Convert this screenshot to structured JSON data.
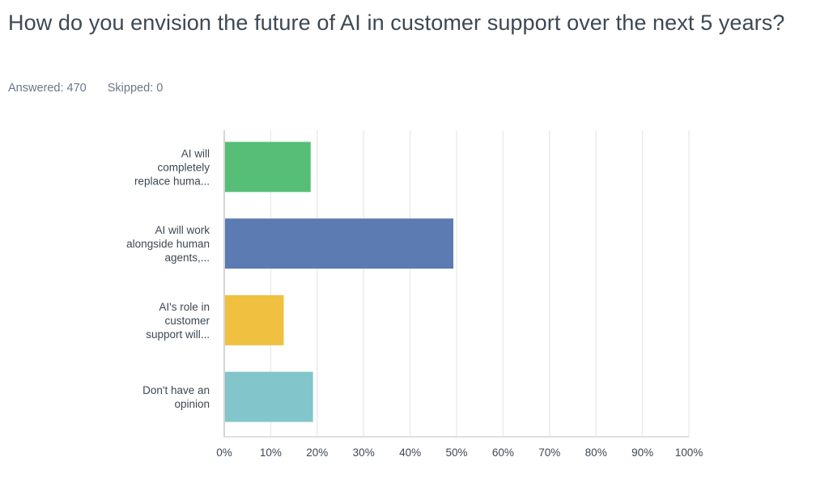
{
  "question": {
    "title": "How do you envision the future of AI in customer support over the next 5 years?",
    "answered_label": "Answered: 470",
    "skipped_label": "Skipped: 0"
  },
  "chart_data": {
    "type": "bar",
    "orientation": "horizontal",
    "title": "How do you envision the future of AI in customer support over the next 5 years?",
    "xlabel": "",
    "ylabel": "",
    "categories": [
      [
        "AI will",
        "completely",
        "replace huma..."
      ],
      [
        "AI will work",
        "alongside human",
        "agents,..."
      ],
      [
        "AI's role in",
        "customer",
        "support will..."
      ],
      [
        "Don't have an",
        "opinion"
      ]
    ],
    "category_names": [
      "AI will completely replace huma...",
      "AI will work alongside human agents,...",
      "AI's role in customer support will...",
      "Don't have an opinion"
    ],
    "values": [
      18.6,
      49.3,
      12.8,
      19.1
    ],
    "unit": "%",
    "colors": [
      "#57be77",
      "#5b7bb2",
      "#f0c040",
      "#82c5ca"
    ],
    "xlim": [
      0,
      100
    ],
    "xticks": [
      "0%",
      "10%",
      "20%",
      "30%",
      "40%",
      "50%",
      "60%",
      "70%",
      "80%",
      "90%",
      "100%"
    ],
    "grid": true,
    "legend": "none"
  }
}
